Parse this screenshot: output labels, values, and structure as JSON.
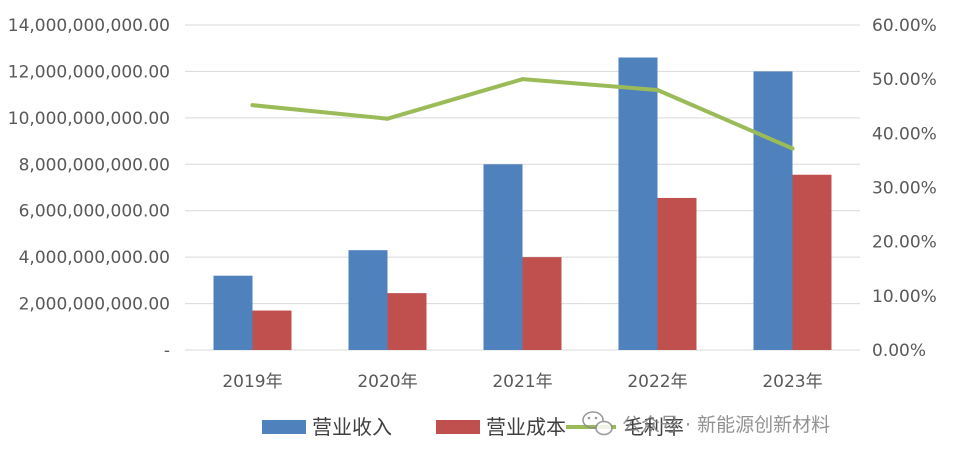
{
  "chart_data": {
    "type": "bar",
    "categories": [
      "2019年",
      "2020年",
      "2021年",
      "2022年",
      "2023年"
    ],
    "series": [
      {
        "name": "营业收入",
        "kind": "bar",
        "axis": "left",
        "color": "#4f81bd",
        "values": [
          3200000000,
          4300000000,
          8000000000,
          12600000000,
          12000000000
        ]
      },
      {
        "name": "营业成本",
        "kind": "bar",
        "axis": "left",
        "color": "#c0504d",
        "values": [
          1700000000,
          2450000000,
          4000000000,
          6550000000,
          7550000000
        ]
      },
      {
        "name": "毛利率",
        "kind": "line",
        "axis": "right",
        "color": "#9bbb59",
        "values": [
          45.2,
          42.7,
          50.0,
          48.0,
          37.2
        ]
      }
    ],
    "left_axis": {
      "ylim": [
        0,
        14000000000
      ],
      "ticks": [
        "-",
        "2,000,000,000.00",
        "4,000,000,000.00",
        "6,000,000,000.00",
        "8,000,000,000.00",
        "10,000,000,000.00",
        "12,000,000,000.00",
        "14,000,000,000.00"
      ]
    },
    "right_axis": {
      "ylim": [
        0,
        60
      ],
      "ticks": [
        "0.00%",
        "10.00%",
        "20.00%",
        "30.00%",
        "40.00%",
        "50.00%",
        "60.00%"
      ]
    },
    "grid": true,
    "legend": "bottom",
    "title": "",
    "xlabel": "",
    "ylabel": ""
  },
  "watermark": {
    "text": "公众号 · 新能源创新材料",
    "icon": "wechat-icon"
  },
  "colors": {
    "grid": "#d9d9d9",
    "axis_text": "#595959"
  }
}
